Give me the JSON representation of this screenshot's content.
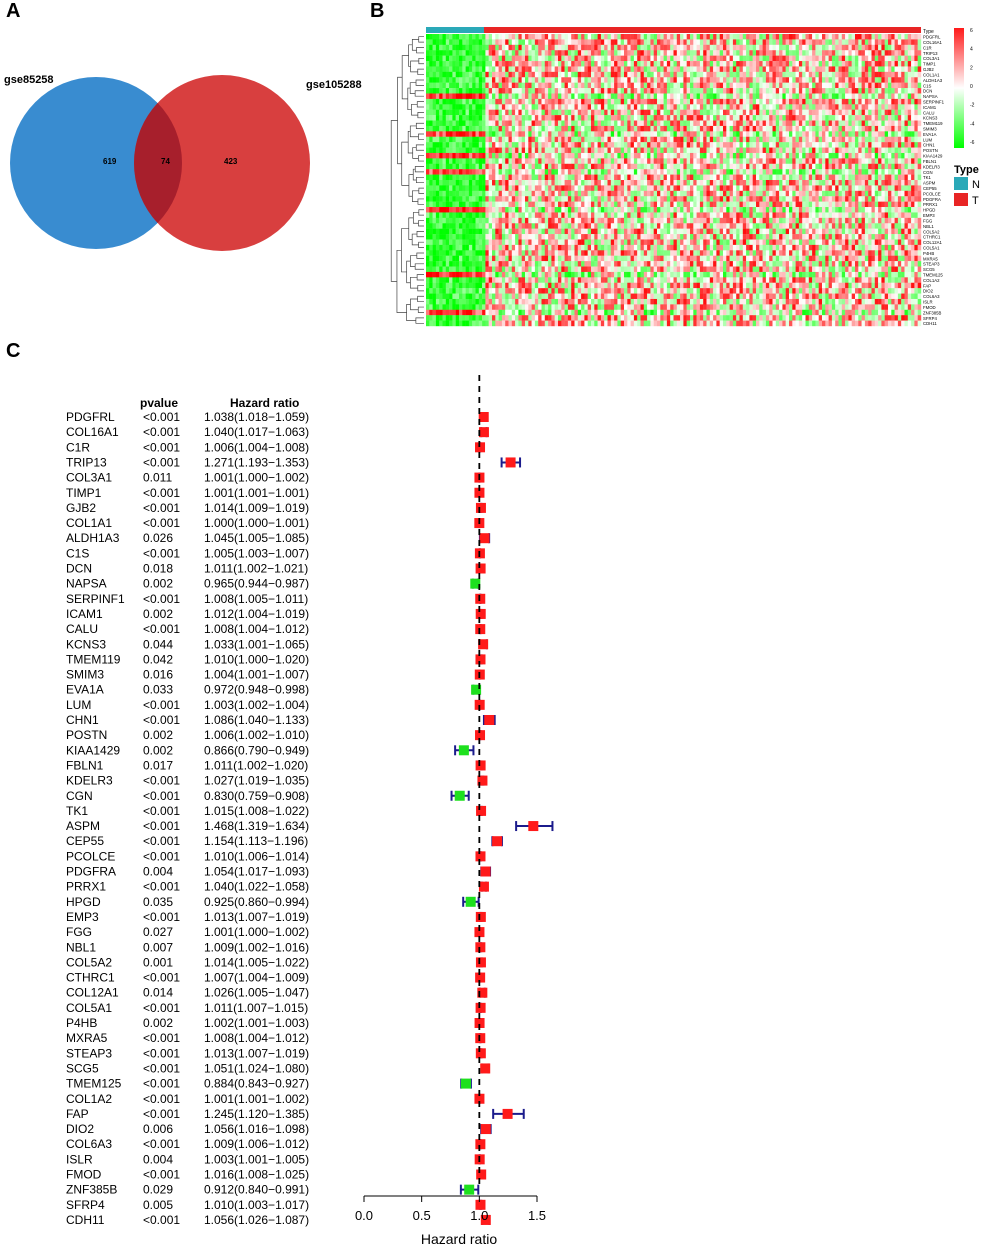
{
  "panels": {
    "a": "A",
    "b": "B",
    "c": "C"
  },
  "colors": {
    "venn_left": "#2e86cd",
    "venn_right": "#d42a2a",
    "heat_high": "#ff1a1a",
    "heat_low": "#00ff00",
    "heat_mid": "#ffffff",
    "type_n": "#2aa9b8",
    "type_t": "#e82525",
    "risk_box": "#ff1a1a",
    "protect_box": "#1ee01e",
    "ci_line": "#1b1b8c"
  },
  "venn": {
    "left_label": "gse85258",
    "right_label": "gse105288",
    "left_only": "619",
    "intersection": "74",
    "right_only": "423"
  },
  "heatmap": {
    "type_header": "Type",
    "legend_ticks": [
      "6",
      "4",
      "2",
      "0",
      "-2",
      "-4",
      "-6"
    ],
    "type_legend_title": "Type",
    "type_n": "N",
    "type_t": "T"
  },
  "forest": {
    "col_pvalue": "pvalue",
    "col_hr": "Hazard ratio",
    "xlabel": "Hazard ratio"
  },
  "chart_data": [
    {
      "type": "venn",
      "title": "",
      "sets": [
        {
          "name": "gse85258",
          "unique": 619
        },
        {
          "name": "gse105288",
          "unique": 423
        }
      ],
      "intersection": 74
    },
    {
      "type": "heatmap",
      "title": "",
      "groups": [
        "N",
        "T"
      ],
      "color_scale": [
        -6,
        6
      ],
      "legend_ticks": [
        6,
        4,
        2,
        0,
        -2,
        -4,
        -6
      ]
    },
    {
      "type": "forest",
      "title": "",
      "xlabel": "Hazard ratio",
      "xlim": [
        0.0,
        1.5
      ],
      "xticks": [
        "0.0",
        "0.5",
        "1.0",
        "1.5"
      ],
      "reference_line": 1.0,
      "rows": [
        {
          "gene": "PDGFRL",
          "p": "<0.001",
          "hr_text": "1.038(1.018−1.059)",
          "hr": 1.038,
          "lo": 1.018,
          "hi": 1.059
        },
        {
          "gene": "COL16A1",
          "p": "<0.001",
          "hr_text": "1.040(1.017−1.063)",
          "hr": 1.04,
          "lo": 1.017,
          "hi": 1.063
        },
        {
          "gene": "C1R",
          "p": "<0.001",
          "hr_text": "1.006(1.004−1.008)",
          "hr": 1.006,
          "lo": 1.004,
          "hi": 1.008
        },
        {
          "gene": "TRIP13",
          "p": "<0.001",
          "hr_text": "1.271(1.193−1.353)",
          "hr": 1.271,
          "lo": 1.193,
          "hi": 1.353
        },
        {
          "gene": "COL3A1",
          "p": "0.011",
          "hr_text": "1.001(1.000−1.002)",
          "hr": 1.001,
          "lo": 1.0,
          "hi": 1.002
        },
        {
          "gene": "TIMP1",
          "p": "<0.001",
          "hr_text": "1.001(1.001−1.001)",
          "hr": 1.001,
          "lo": 1.001,
          "hi": 1.001
        },
        {
          "gene": "GJB2",
          "p": "<0.001",
          "hr_text": "1.014(1.009−1.019)",
          "hr": 1.014,
          "lo": 1.009,
          "hi": 1.019
        },
        {
          "gene": "COL1A1",
          "p": "<0.001",
          "hr_text": "1.000(1.000−1.001)",
          "hr": 1.0,
          "lo": 1.0,
          "hi": 1.001
        },
        {
          "gene": "ALDH1A3",
          "p": "0.026",
          "hr_text": "1.045(1.005−1.085)",
          "hr": 1.045,
          "lo": 1.005,
          "hi": 1.085
        },
        {
          "gene": "C1S",
          "p": "<0.001",
          "hr_text": "1.005(1.003−1.007)",
          "hr": 1.005,
          "lo": 1.003,
          "hi": 1.007
        },
        {
          "gene": "DCN",
          "p": "0.018",
          "hr_text": "1.011(1.002−1.021)",
          "hr": 1.011,
          "lo": 1.002,
          "hi": 1.021
        },
        {
          "gene": "NAPSA",
          "p": "0.002",
          "hr_text": "0.965(0.944−0.987)",
          "hr": 0.965,
          "lo": 0.944,
          "hi": 0.987
        },
        {
          "gene": "SERPINF1",
          "p": "<0.001",
          "hr_text": "1.008(1.005−1.011)",
          "hr": 1.008,
          "lo": 1.005,
          "hi": 1.011
        },
        {
          "gene": "ICAM1",
          "p": "0.002",
          "hr_text": "1.012(1.004−1.019)",
          "hr": 1.012,
          "lo": 1.004,
          "hi": 1.019
        },
        {
          "gene": "CALU",
          "p": "<0.001",
          "hr_text": "1.008(1.004−1.012)",
          "hr": 1.008,
          "lo": 1.004,
          "hi": 1.012
        },
        {
          "gene": "KCNS3",
          "p": "0.044",
          "hr_text": "1.033(1.001−1.065)",
          "hr": 1.033,
          "lo": 1.001,
          "hi": 1.065
        },
        {
          "gene": "TMEM119",
          "p": "0.042",
          "hr_text": "1.010(1.000−1.020)",
          "hr": 1.01,
          "lo": 1.0,
          "hi": 1.02
        },
        {
          "gene": "SMIM3",
          "p": "0.016",
          "hr_text": "1.004(1.001−1.007)",
          "hr": 1.004,
          "lo": 1.001,
          "hi": 1.007
        },
        {
          "gene": "EVA1A",
          "p": "0.033",
          "hr_text": "0.972(0.948−0.998)",
          "hr": 0.972,
          "lo": 0.948,
          "hi": 0.998
        },
        {
          "gene": "LUM",
          "p": "<0.001",
          "hr_text": "1.003(1.002−1.004)",
          "hr": 1.003,
          "lo": 1.002,
          "hi": 1.004
        },
        {
          "gene": "CHN1",
          "p": "<0.001",
          "hr_text": "1.086(1.040−1.133)",
          "hr": 1.086,
          "lo": 1.04,
          "hi": 1.133
        },
        {
          "gene": "POSTN",
          "p": "0.002",
          "hr_text": "1.006(1.002−1.010)",
          "hr": 1.006,
          "lo": 1.002,
          "hi": 1.01
        },
        {
          "gene": "KIAA1429",
          "p": "0.002",
          "hr_text": "0.866(0.790−0.949)",
          "hr": 0.866,
          "lo": 0.79,
          "hi": 0.949
        },
        {
          "gene": "FBLN1",
          "p": "0.017",
          "hr_text": "1.011(1.002−1.020)",
          "hr": 1.011,
          "lo": 1.002,
          "hi": 1.02
        },
        {
          "gene": "KDELR3",
          "p": "<0.001",
          "hr_text": "1.027(1.019−1.035)",
          "hr": 1.027,
          "lo": 1.019,
          "hi": 1.035
        },
        {
          "gene": "CGN",
          "p": "<0.001",
          "hr_text": "0.830(0.759−0.908)",
          "hr": 0.83,
          "lo": 0.759,
          "hi": 0.908
        },
        {
          "gene": "TK1",
          "p": "<0.001",
          "hr_text": "1.015(1.008−1.022)",
          "hr": 1.015,
          "lo": 1.008,
          "hi": 1.022
        },
        {
          "gene": "ASPM",
          "p": "<0.001",
          "hr_text": "1.468(1.319−1.634)",
          "hr": 1.468,
          "lo": 1.319,
          "hi": 1.634
        },
        {
          "gene": "CEP55",
          "p": "<0.001",
          "hr_text": "1.154(1.113−1.196)",
          "hr": 1.154,
          "lo": 1.113,
          "hi": 1.196
        },
        {
          "gene": "PCOLCE",
          "p": "<0.001",
          "hr_text": "1.010(1.006−1.014)",
          "hr": 1.01,
          "lo": 1.006,
          "hi": 1.014
        },
        {
          "gene": "PDGFRA",
          "p": "0.004",
          "hr_text": "1.054(1.017−1.093)",
          "hr": 1.054,
          "lo": 1.017,
          "hi": 1.093
        },
        {
          "gene": "PRRX1",
          "p": "<0.001",
          "hr_text": "1.040(1.022−1.058)",
          "hr": 1.04,
          "lo": 1.022,
          "hi": 1.058
        },
        {
          "gene": "HPGD",
          "p": "0.035",
          "hr_text": "0.925(0.860−0.994)",
          "hr": 0.925,
          "lo": 0.86,
          "hi": 0.994
        },
        {
          "gene": "EMP3",
          "p": "<0.001",
          "hr_text": "1.013(1.007−1.019)",
          "hr": 1.013,
          "lo": 1.007,
          "hi": 1.019
        },
        {
          "gene": "FGG",
          "p": "0.027",
          "hr_text": "1.001(1.000−1.002)",
          "hr": 1.001,
          "lo": 1.0,
          "hi": 1.002
        },
        {
          "gene": "NBL1",
          "p": "0.007",
          "hr_text": "1.009(1.002−1.016)",
          "hr": 1.009,
          "lo": 1.002,
          "hi": 1.016
        },
        {
          "gene": "COL5A2",
          "p": "0.001",
          "hr_text": "1.014(1.005−1.022)",
          "hr": 1.014,
          "lo": 1.005,
          "hi": 1.022
        },
        {
          "gene": "CTHRC1",
          "p": "<0.001",
          "hr_text": "1.007(1.004−1.009)",
          "hr": 1.007,
          "lo": 1.004,
          "hi": 1.009
        },
        {
          "gene": "COL12A1",
          "p": "0.014",
          "hr_text": "1.026(1.005−1.047)",
          "hr": 1.026,
          "lo": 1.005,
          "hi": 1.047
        },
        {
          "gene": "COL5A1",
          "p": "<0.001",
          "hr_text": "1.011(1.007−1.015)",
          "hr": 1.011,
          "lo": 1.007,
          "hi": 1.015
        },
        {
          "gene": "P4HB",
          "p": "0.002",
          "hr_text": "1.002(1.001−1.003)",
          "hr": 1.002,
          "lo": 1.001,
          "hi": 1.003
        },
        {
          "gene": "MXRA5",
          "p": "<0.001",
          "hr_text": "1.008(1.004−1.012)",
          "hr": 1.008,
          "lo": 1.004,
          "hi": 1.012
        },
        {
          "gene": "STEAP3",
          "p": "<0.001",
          "hr_text": "1.013(1.007−1.019)",
          "hr": 1.013,
          "lo": 1.007,
          "hi": 1.019
        },
        {
          "gene": "SCG5",
          "p": "<0.001",
          "hr_text": "1.051(1.024−1.080)",
          "hr": 1.051,
          "lo": 1.024,
          "hi": 1.08
        },
        {
          "gene": "TMEM125",
          "p": "<0.001",
          "hr_text": "0.884(0.843−0.927)",
          "hr": 0.884,
          "lo": 0.843,
          "hi": 0.927
        },
        {
          "gene": "COL1A2",
          "p": "<0.001",
          "hr_text": "1.001(1.001−1.002)",
          "hr": 1.001,
          "lo": 1.001,
          "hi": 1.002
        },
        {
          "gene": "FAP",
          "p": "<0.001",
          "hr_text": "1.245(1.120−1.385)",
          "hr": 1.245,
          "lo": 1.12,
          "hi": 1.385
        },
        {
          "gene": "DIO2",
          "p": "0.006",
          "hr_text": "1.056(1.016−1.098)",
          "hr": 1.056,
          "lo": 1.016,
          "hi": 1.098
        },
        {
          "gene": "COL6A3",
          "p": "<0.001",
          "hr_text": "1.009(1.006−1.012)",
          "hr": 1.009,
          "lo": 1.006,
          "hi": 1.012
        },
        {
          "gene": "ISLR",
          "p": "0.004",
          "hr_text": "1.003(1.001−1.005)",
          "hr": 1.003,
          "lo": 1.001,
          "hi": 1.005
        },
        {
          "gene": "FMOD",
          "p": "<0.001",
          "hr_text": "1.016(1.008−1.025)",
          "hr": 1.016,
          "lo": 1.008,
          "hi": 1.025
        },
        {
          "gene": "ZNF385B",
          "p": "0.029",
          "hr_text": "0.912(0.840−0.991)",
          "hr": 0.912,
          "lo": 0.84,
          "hi": 0.991
        },
        {
          "gene": "SFRP4",
          "p": "0.005",
          "hr_text": "1.010(1.003−1.017)",
          "hr": 1.01,
          "lo": 1.003,
          "hi": 1.017
        },
        {
          "gene": "CDH11",
          "p": "<0.001",
          "hr_text": "1.056(1.026−1.087)",
          "hr": 1.056,
          "lo": 1.026,
          "hi": 1.087
        }
      ]
    }
  ]
}
